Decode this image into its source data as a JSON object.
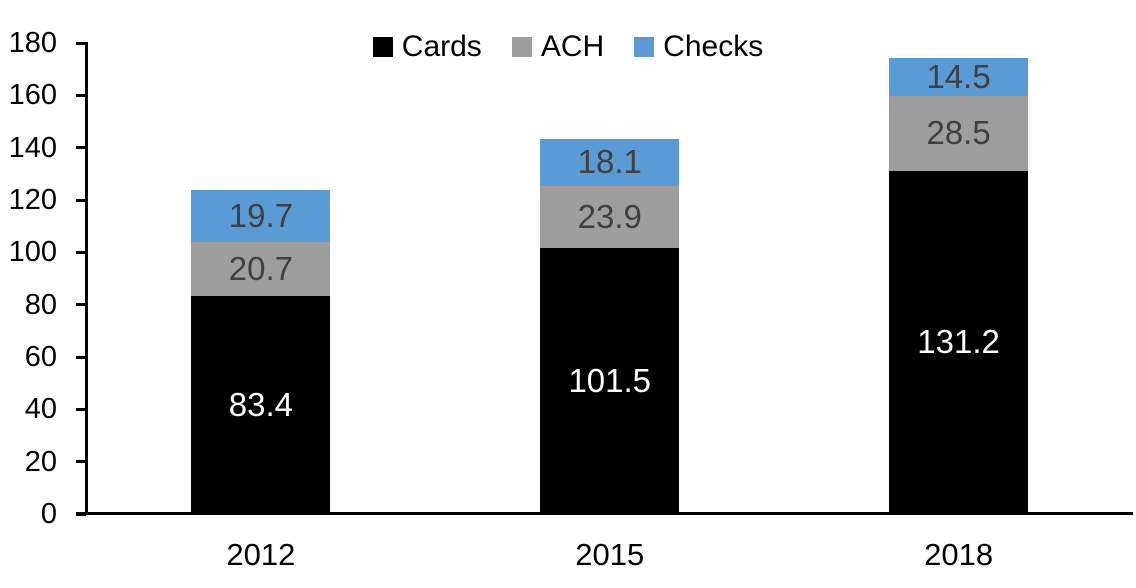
{
  "chart_data": {
    "type": "bar",
    "stacked": true,
    "title": "",
    "xlabel": "",
    "ylabel": "",
    "grid": false,
    "legend_position": "top",
    "categories": [
      "2012",
      "2015",
      "2018"
    ],
    "series": [
      {
        "name": "Cards",
        "color": "#000000",
        "label_color": "#FFFFFF",
        "values": [
          83.4,
          101.5,
          131.2
        ]
      },
      {
        "name": "ACH",
        "color": "#9E9E9E",
        "label_color": "#404040",
        "values": [
          20.7,
          23.9,
          28.5
        ]
      },
      {
        "name": "Checks",
        "color": "#5B9BD5",
        "label_color": "#404040",
        "values": [
          19.7,
          18.1,
          14.5
        ]
      }
    ],
    "ylim": [
      0,
      180
    ],
    "ytick_step": 20,
    "yticks": [
      0,
      20,
      40,
      60,
      80,
      100,
      120,
      140,
      160,
      180
    ],
    "axis_color": "#000000"
  }
}
